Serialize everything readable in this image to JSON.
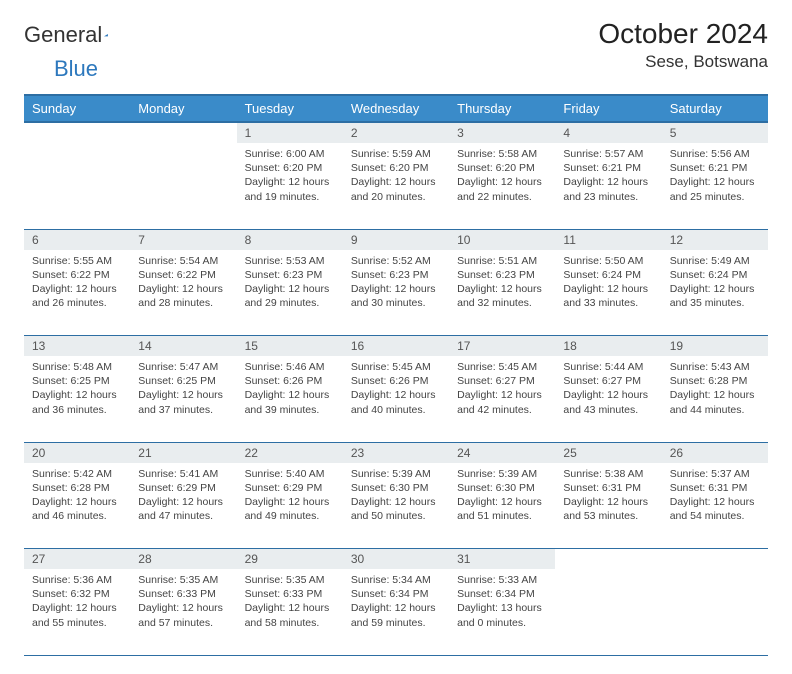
{
  "logo": {
    "text1": "General",
    "text2": "Blue"
  },
  "title": "October 2024",
  "location": "Sese, Botswana",
  "day_headers": [
    "Sunday",
    "Monday",
    "Tuesday",
    "Wednesday",
    "Thursday",
    "Friday",
    "Saturday"
  ],
  "colors": {
    "header_bg": "#3a8bc9",
    "header_border": "#2d6ea3",
    "daynum_bg": "#e9edef",
    "text": "#444444",
    "title": "#222222",
    "logo_blue": "#2d78bd"
  },
  "weeks": [
    [
      null,
      null,
      {
        "n": "1",
        "sr": "Sunrise: 6:00 AM",
        "ss": "Sunset: 6:20 PM",
        "d1": "Daylight: 12 hours",
        "d2": "and 19 minutes."
      },
      {
        "n": "2",
        "sr": "Sunrise: 5:59 AM",
        "ss": "Sunset: 6:20 PM",
        "d1": "Daylight: 12 hours",
        "d2": "and 20 minutes."
      },
      {
        "n": "3",
        "sr": "Sunrise: 5:58 AM",
        "ss": "Sunset: 6:20 PM",
        "d1": "Daylight: 12 hours",
        "d2": "and 22 minutes."
      },
      {
        "n": "4",
        "sr": "Sunrise: 5:57 AM",
        "ss": "Sunset: 6:21 PM",
        "d1": "Daylight: 12 hours",
        "d2": "and 23 minutes."
      },
      {
        "n": "5",
        "sr": "Sunrise: 5:56 AM",
        "ss": "Sunset: 6:21 PM",
        "d1": "Daylight: 12 hours",
        "d2": "and 25 minutes."
      }
    ],
    [
      {
        "n": "6",
        "sr": "Sunrise: 5:55 AM",
        "ss": "Sunset: 6:22 PM",
        "d1": "Daylight: 12 hours",
        "d2": "and 26 minutes."
      },
      {
        "n": "7",
        "sr": "Sunrise: 5:54 AM",
        "ss": "Sunset: 6:22 PM",
        "d1": "Daylight: 12 hours",
        "d2": "and 28 minutes."
      },
      {
        "n": "8",
        "sr": "Sunrise: 5:53 AM",
        "ss": "Sunset: 6:23 PM",
        "d1": "Daylight: 12 hours",
        "d2": "and 29 minutes."
      },
      {
        "n": "9",
        "sr": "Sunrise: 5:52 AM",
        "ss": "Sunset: 6:23 PM",
        "d1": "Daylight: 12 hours",
        "d2": "and 30 minutes."
      },
      {
        "n": "10",
        "sr": "Sunrise: 5:51 AM",
        "ss": "Sunset: 6:23 PM",
        "d1": "Daylight: 12 hours",
        "d2": "and 32 minutes."
      },
      {
        "n": "11",
        "sr": "Sunrise: 5:50 AM",
        "ss": "Sunset: 6:24 PM",
        "d1": "Daylight: 12 hours",
        "d2": "and 33 minutes."
      },
      {
        "n": "12",
        "sr": "Sunrise: 5:49 AM",
        "ss": "Sunset: 6:24 PM",
        "d1": "Daylight: 12 hours",
        "d2": "and 35 minutes."
      }
    ],
    [
      {
        "n": "13",
        "sr": "Sunrise: 5:48 AM",
        "ss": "Sunset: 6:25 PM",
        "d1": "Daylight: 12 hours",
        "d2": "and 36 minutes."
      },
      {
        "n": "14",
        "sr": "Sunrise: 5:47 AM",
        "ss": "Sunset: 6:25 PM",
        "d1": "Daylight: 12 hours",
        "d2": "and 37 minutes."
      },
      {
        "n": "15",
        "sr": "Sunrise: 5:46 AM",
        "ss": "Sunset: 6:26 PM",
        "d1": "Daylight: 12 hours",
        "d2": "and 39 minutes."
      },
      {
        "n": "16",
        "sr": "Sunrise: 5:45 AM",
        "ss": "Sunset: 6:26 PM",
        "d1": "Daylight: 12 hours",
        "d2": "and 40 minutes."
      },
      {
        "n": "17",
        "sr": "Sunrise: 5:45 AM",
        "ss": "Sunset: 6:27 PM",
        "d1": "Daylight: 12 hours",
        "d2": "and 42 minutes."
      },
      {
        "n": "18",
        "sr": "Sunrise: 5:44 AM",
        "ss": "Sunset: 6:27 PM",
        "d1": "Daylight: 12 hours",
        "d2": "and 43 minutes."
      },
      {
        "n": "19",
        "sr": "Sunrise: 5:43 AM",
        "ss": "Sunset: 6:28 PM",
        "d1": "Daylight: 12 hours",
        "d2": "and 44 minutes."
      }
    ],
    [
      {
        "n": "20",
        "sr": "Sunrise: 5:42 AM",
        "ss": "Sunset: 6:28 PM",
        "d1": "Daylight: 12 hours",
        "d2": "and 46 minutes."
      },
      {
        "n": "21",
        "sr": "Sunrise: 5:41 AM",
        "ss": "Sunset: 6:29 PM",
        "d1": "Daylight: 12 hours",
        "d2": "and 47 minutes."
      },
      {
        "n": "22",
        "sr": "Sunrise: 5:40 AM",
        "ss": "Sunset: 6:29 PM",
        "d1": "Daylight: 12 hours",
        "d2": "and 49 minutes."
      },
      {
        "n": "23",
        "sr": "Sunrise: 5:39 AM",
        "ss": "Sunset: 6:30 PM",
        "d1": "Daylight: 12 hours",
        "d2": "and 50 minutes."
      },
      {
        "n": "24",
        "sr": "Sunrise: 5:39 AM",
        "ss": "Sunset: 6:30 PM",
        "d1": "Daylight: 12 hours",
        "d2": "and 51 minutes."
      },
      {
        "n": "25",
        "sr": "Sunrise: 5:38 AM",
        "ss": "Sunset: 6:31 PM",
        "d1": "Daylight: 12 hours",
        "d2": "and 53 minutes."
      },
      {
        "n": "26",
        "sr": "Sunrise: 5:37 AM",
        "ss": "Sunset: 6:31 PM",
        "d1": "Daylight: 12 hours",
        "d2": "and 54 minutes."
      }
    ],
    [
      {
        "n": "27",
        "sr": "Sunrise: 5:36 AM",
        "ss": "Sunset: 6:32 PM",
        "d1": "Daylight: 12 hours",
        "d2": "and 55 minutes."
      },
      {
        "n": "28",
        "sr": "Sunrise: 5:35 AM",
        "ss": "Sunset: 6:33 PM",
        "d1": "Daylight: 12 hours",
        "d2": "and 57 minutes."
      },
      {
        "n": "29",
        "sr": "Sunrise: 5:35 AM",
        "ss": "Sunset: 6:33 PM",
        "d1": "Daylight: 12 hours",
        "d2": "and 58 minutes."
      },
      {
        "n": "30",
        "sr": "Sunrise: 5:34 AM",
        "ss": "Sunset: 6:34 PM",
        "d1": "Daylight: 12 hours",
        "d2": "and 59 minutes."
      },
      {
        "n": "31",
        "sr": "Sunrise: 5:33 AM",
        "ss": "Sunset: 6:34 PM",
        "d1": "Daylight: 13 hours",
        "d2": "and 0 minutes."
      },
      null,
      null
    ]
  ]
}
